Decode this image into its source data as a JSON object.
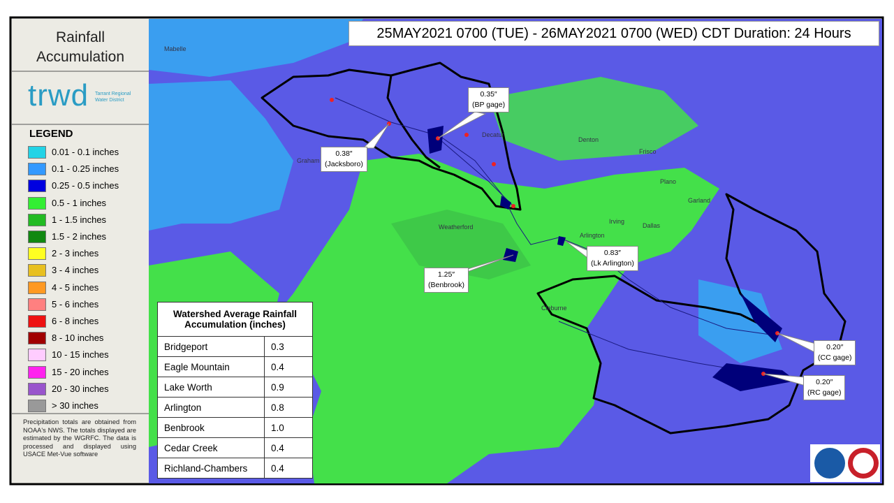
{
  "header": {
    "title": "Rainfall Accumulation",
    "period": "25MAY2021 0700 (TUE) - 26MAY2021 0700 (WED) CDT Duration: 24 Hours"
  },
  "logo": {
    "text": "trwd",
    "subtext": "Tarrant Regional Water District"
  },
  "legend": {
    "title": "LEGEND",
    "items": [
      {
        "label": "0.01 - 0.1 inches",
        "color": "#22d3e6"
      },
      {
        "label": "0.1 - 0.25 inches",
        "color": "#3399ff"
      },
      {
        "label": "0.25 - 0.5 inches",
        "color": "#0000e0"
      },
      {
        "label": "0.5 - 1 inches",
        "color": "#33ee33"
      },
      {
        "label": "1 - 1.5 inches",
        "color": "#22bb22"
      },
      {
        "label": "1.5 - 2 inches",
        "color": "#118811"
      },
      {
        "label": "2 - 3 inches",
        "color": "#ffff22"
      },
      {
        "label": "3 - 4 inches",
        "color": "#e8c020"
      },
      {
        "label": "4 - 5 inches",
        "color": "#ff9922"
      },
      {
        "label": "5 - 6 inches",
        "color": "#ff8080"
      },
      {
        "label": "6 - 8 inches",
        "color": "#ee1111"
      },
      {
        "label": "8 - 10 inches",
        "color": "#a00000"
      },
      {
        "label": "10 - 15 inches",
        "color": "#ffccff"
      },
      {
        "label": "15 - 20 inches",
        "color": "#ff22ee"
      },
      {
        "label": "20 - 30 inches",
        "color": "#9955cc"
      },
      {
        "label": "> 30 inches",
        "color": "#999999"
      }
    ]
  },
  "note": "Precipitation totals are obtained from NOAA's NWS. The totals displayed are estimated by the WGRFC. The data is processed and displayed using USACE Met-Vue software",
  "table": {
    "title": "Watershed Average Rainfall Accumulation (inches)",
    "rows": [
      [
        "Bridgeport",
        "0.3"
      ],
      [
        "Eagle Mountain",
        "0.4"
      ],
      [
        "Lake Worth",
        "0.9"
      ],
      [
        "Arlington",
        "0.8"
      ],
      [
        "Benbrook",
        "1.0"
      ],
      [
        "Cedar Creek",
        "0.4"
      ],
      [
        "Richland-Chambers",
        "0.4"
      ]
    ]
  },
  "callouts": [
    {
      "value": "0.35″",
      "name": "(BP gage)"
    },
    {
      "value": "0.38″",
      "name": "(Jacksboro)"
    },
    {
      "value": "0.83″",
      "name": "(Lk Arlington)"
    },
    {
      "value": "1.25″",
      "name": "(Benbrook)"
    },
    {
      "value": "0.20″",
      "name": "(CC gage)"
    },
    {
      "value": "0.20″",
      "name": "(RC gage)"
    }
  ],
  "map_labels": [
    "Mabelle",
    "Graham",
    "Decatur",
    "Denton",
    "Frisco",
    "Plano",
    "Garland",
    "Irving",
    "Dallas",
    "Arlington",
    "Weatherford",
    "Cleburne"
  ]
}
